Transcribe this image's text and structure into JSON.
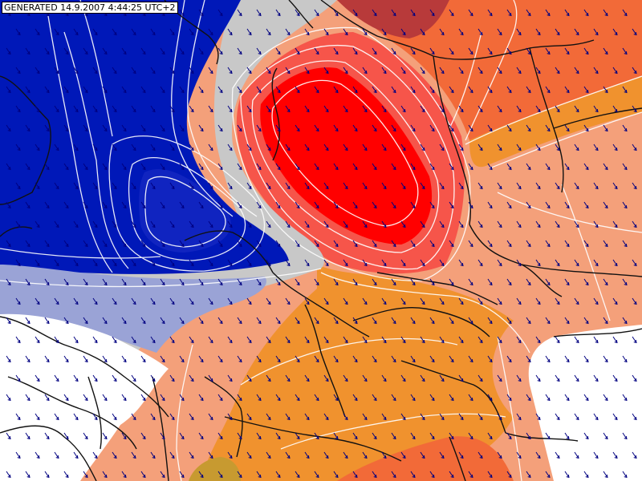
{
  "header": {
    "generated_label": "GENERATED 14.9.2007 4:44:25 UTC+2"
  },
  "map": {
    "field_colors": {
      "deep_blue": "#0018b8",
      "mid_blue": "#2a3fc4",
      "pale_blue": "#9aa3d6",
      "neutral_gray": "#c8c8c8",
      "no_data_white": "#ffffff",
      "light_salmon": "#f4a07a",
      "salmon": "#f09a70",
      "orange": "#f0922e",
      "deep_orange": "#f26a38",
      "light_red": "#f6554a",
      "red": "#ff0000",
      "dark_red": "#b83a3a",
      "ochre": "#c79a30"
    },
    "isoline_color": "#ffffff",
    "border_color": "#111111",
    "wind_arrow_color": "#000080",
    "wind_direction": "northwest",
    "icons": [
      "wind-arrow-icon"
    ]
  }
}
